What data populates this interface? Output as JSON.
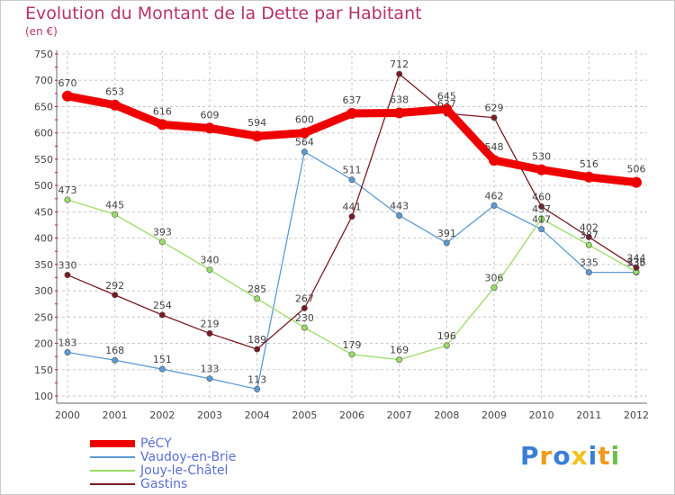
{
  "chart_data": {
    "type": "line",
    "title": "Evolution du Montant de la Dette par Habitant",
    "subtitle": "(en €)",
    "x": [
      "2000",
      "2001",
      "2002",
      "2003",
      "2004",
      "2005",
      "2006",
      "2007",
      "2008",
      "2009",
      "2010",
      "2011",
      "2012"
    ],
    "ylim": [
      100,
      750
    ],
    "yticks": [
      100,
      150,
      200,
      250,
      300,
      350,
      400,
      450,
      500,
      550,
      600,
      650,
      700,
      750
    ],
    "grid": true,
    "legend_position": "bottom-left",
    "series": [
      {
        "name": "PéCY",
        "color": "#ee0000",
        "values": [
          670,
          653,
          616,
          609,
          594,
          600,
          637,
          638,
          645,
          548,
          530,
          516,
          506
        ]
      },
      {
        "name": "Vaudoy-en-Brie",
        "color": "#5b9bd5",
        "values": [
          183,
          168,
          151,
          133,
          113,
          564,
          511,
          443,
          391,
          462,
          417,
          335,
          335
        ]
      },
      {
        "name": "Jouy-le-Châtel",
        "color": "#99dd66",
        "values": [
          473,
          445,
          393,
          340,
          285,
          230,
          179,
          169,
          196,
          306,
          437,
          387,
          336
        ]
      },
      {
        "name": "Gastins",
        "color": "#7a1a22",
        "values": [
          330,
          292,
          254,
          219,
          189,
          267,
          441,
          712,
          637,
          629,
          460,
          402,
          344
        ]
      }
    ]
  },
  "logo": {
    "letters": [
      {
        "ch": "P",
        "color": "#3a7fd6"
      },
      {
        "ch": "r",
        "color": "#f29a1e"
      },
      {
        "ch": "o",
        "color": "#3a7fd6"
      },
      {
        "ch": "x",
        "color": "#f2c21e"
      },
      {
        "ch": "i",
        "color": "#3a7fd6"
      },
      {
        "ch": "t",
        "color": "#f29a1e"
      },
      {
        "ch": "i",
        "color": "#6cc04a"
      }
    ]
  }
}
